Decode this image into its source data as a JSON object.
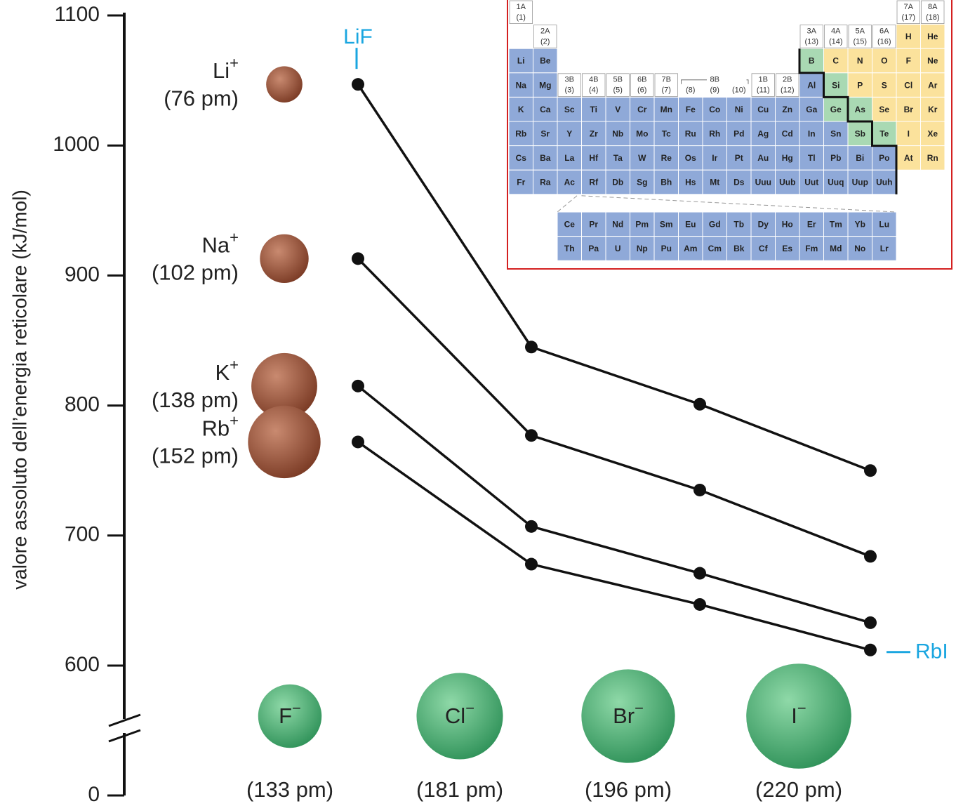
{
  "chart_data": {
    "type": "line",
    "y_label": "valore assoluto dell’energia reticolare (kJ/mol)",
    "ylim": [
      0,
      1100
    ],
    "yticks": [
      0,
      600,
      700,
      800,
      900,
      1000,
      1100
    ],
    "axis_break": true,
    "line_color": "#111111",
    "cation_color": "#8b4a32",
    "anion_color": "#3aa56a",
    "annotation_color": "#1aa6e0",
    "anions": [
      {
        "name": "F",
        "charge": "−",
        "radius": 133,
        "radius_label": "(133 pm)"
      },
      {
        "name": "Cl",
        "charge": "−",
        "radius": 181,
        "radius_label": "(181 pm)"
      },
      {
        "name": "Br",
        "charge": "−",
        "radius": 196,
        "radius_label": "(196 pm)"
      },
      {
        "name": "I",
        "charge": "−",
        "radius": 220,
        "radius_label": "(220 pm)"
      }
    ],
    "series": [
      {
        "name": "Li",
        "charge": "+",
        "radius": 76,
        "radius_label": "(76 pm)",
        "values": [
          1047,
          845,
          801,
          750
        ]
      },
      {
        "name": "Na",
        "charge": "+",
        "radius": 102,
        "radius_label": "(102 pm)",
        "values": [
          913,
          777,
          735,
          684
        ]
      },
      {
        "name": "K",
        "charge": "+",
        "radius": 138,
        "radius_label": "(138 pm)",
        "values": [
          815,
          707,
          671,
          633
        ]
      },
      {
        "name": "Rb",
        "charge": "+",
        "radius": 152,
        "radius_label": "(152 pm)",
        "values": [
          772,
          678,
          647,
          612
        ]
      }
    ],
    "annotations": {
      "first": "LiF",
      "last": "RbI"
    }
  },
  "periodic_table": {
    "groups_left": [
      {
        "label": "1A",
        "number": "(1)"
      },
      {
        "label": "2A",
        "number": "(2)"
      },
      {
        "label": "3B",
        "number": "(3)"
      },
      {
        "label": "4B",
        "number": "(4)"
      },
      {
        "label": "5B",
        "number": "(5)"
      },
      {
        "label": "6B",
        "number": "(6)"
      },
      {
        "label": "7B",
        "number": "(7)"
      }
    ],
    "group_8b": {
      "label": "8B",
      "numbers": [
        "(8)",
        "(9)",
        "(10)"
      ]
    },
    "groups_right": [
      {
        "label": "1B",
        "number": "(11)"
      },
      {
        "label": "2B",
        "number": "(12)"
      },
      {
        "label": "3A",
        "number": "(13)"
      },
      {
        "label": "4A",
        "number": "(14)"
      },
      {
        "label": "5A",
        "number": "(15)"
      },
      {
        "label": "6A",
        "number": "(16)"
      },
      {
        "label": "7A",
        "number": "(17)"
      },
      {
        "label": "8A",
        "number": "(18)"
      }
    ],
    "periods": [
      [
        null,
        null,
        null,
        null,
        null,
        null,
        null,
        null,
        null,
        null,
        null,
        null,
        null,
        null,
        null,
        null,
        "H",
        "He"
      ],
      [
        "Li",
        "Be",
        null,
        null,
        null,
        null,
        null,
        null,
        null,
        null,
        null,
        null,
        "B",
        "C",
        "N",
        "O",
        "F",
        "Ne"
      ],
      [
        "Na",
        "Mg",
        null,
        null,
        null,
        null,
        null,
        null,
        null,
        null,
        null,
        null,
        "Al",
        "Si",
        "P",
        "S",
        "Cl",
        "Ar"
      ],
      [
        "K",
        "Ca",
        "Sc",
        "Ti",
        "V",
        "Cr",
        "Mn",
        "Fe",
        "Co",
        "Ni",
        "Cu",
        "Zn",
        "Ga",
        "Ge",
        "As",
        "Se",
        "Br",
        "Kr"
      ],
      [
        "Rb",
        "Sr",
        "Y",
        "Zr",
        "Nb",
        "Mo",
        "Tc",
        "Ru",
        "Rh",
        "Pd",
        "Ag",
        "Cd",
        "In",
        "Sn",
        "Sb",
        "Te",
        "I",
        "Xe"
      ],
      [
        "Cs",
        "Ba",
        "La",
        "Hf",
        "Ta",
        "W",
        "Re",
        "Os",
        "Ir",
        "Pt",
        "Au",
        "Hg",
        "Tl",
        "Pb",
        "Bi",
        "Po",
        "At",
        "Rn"
      ],
      [
        "Fr",
        "Ra",
        "Ac",
        "Rf",
        "Db",
        "Sg",
        "Bh",
        "Hs",
        "Mt",
        "Ds",
        "Uuu",
        "Uub",
        "Uut",
        "Uuq",
        "Uup",
        "Uuh",
        null,
        null
      ]
    ],
    "f_block": [
      [
        "Ce",
        "Pr",
        "Nd",
        "Pm",
        "Sm",
        "Eu",
        "Gd",
        "Tb",
        "Dy",
        "Ho",
        "Er",
        "Tm",
        "Yb",
        "Lu"
      ],
      [
        "Th",
        "Pa",
        "U",
        "Np",
        "Pu",
        "Am",
        "Cm",
        "Bk",
        "Cf",
        "Es",
        "Fm",
        "Md",
        "No",
        "Lr"
      ]
    ],
    "metalloids": [
      "B",
      "Si",
      "Ge",
      "As",
      "Sb",
      "Te"
    ],
    "nonmetals": [
      "H",
      "He",
      "C",
      "N",
      "O",
      "F",
      "Ne",
      "P",
      "S",
      "Cl",
      "Ar",
      "Se",
      "Br",
      "Kr",
      "I",
      "Xe",
      "At",
      "Rn"
    ],
    "colors": {
      "metal": "#8fa9d8",
      "metalloid": "#a9d9b3",
      "nonmetal": "#fbe29c",
      "frame": "#d42020"
    }
  }
}
